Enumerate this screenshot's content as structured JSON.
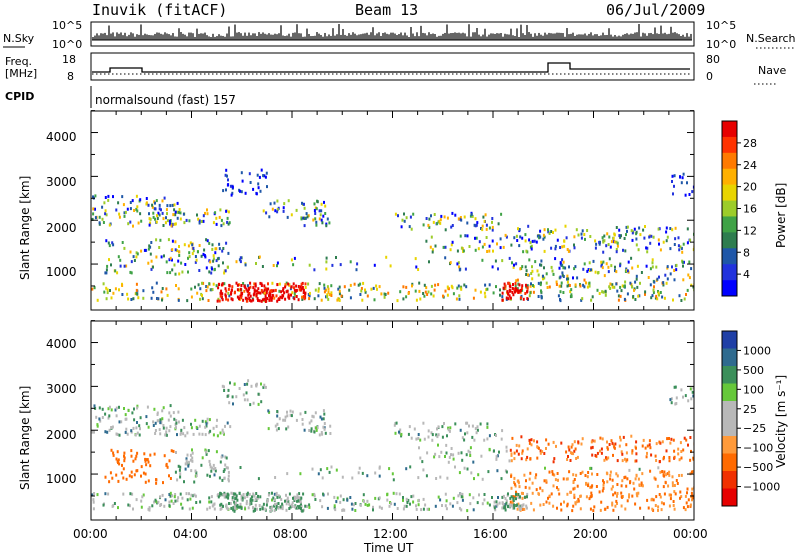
{
  "header": {
    "station": "Inuvik (fitACF)",
    "beam": "Beam 13",
    "date": "06/Jul/2009"
  },
  "strip": {
    "nsky_label": "N.Sky",
    "nsky_ticks": [
      "10^5",
      "10^0"
    ],
    "nsearch_label": "N.Search",
    "nsearch_ticks": [
      "10^5",
      "10^0"
    ],
    "freq_label": "Freq.",
    "freq_unit": "[MHz]",
    "freq_ticks": [
      "18",
      "8"
    ],
    "nave_label": "Nave",
    "nave_ticks": [
      "80",
      "0"
    ],
    "cpid_label": "CPID",
    "cpid_text": "normalsound (fast) 157"
  },
  "xaxis": {
    "label": "Time UT",
    "ticks": [
      "00:00",
      "04:00",
      "08:00",
      "12:00",
      "16:00",
      "20:00",
      "00:00"
    ]
  },
  "chart_data": [
    {
      "type": "heatmap",
      "ylabel": "Slant Range [km]",
      "yticks": [
        "4000",
        "3000",
        "2000",
        "1000"
      ],
      "colorbar": {
        "label": "Power [dB]",
        "ticks": [
          "28",
          "24",
          "20",
          "16",
          "12",
          "8",
          "4"
        ],
        "colors": [
          "#e60000",
          "#ff3300",
          "#ff7a00",
          "#ffb000",
          "#e8d400",
          "#9ccc2a",
          "#3fa246",
          "#2e7d4f",
          "#1f57a8",
          "#2233dd",
          "#0000ff"
        ]
      }
    },
    {
      "type": "heatmap",
      "ylabel": "Slant Range [km]",
      "yticks": [
        "4000",
        "3000",
        "2000",
        "1000"
      ],
      "colorbar": {
        "label": "Velocity [m s⁻¹]",
        "ticks": [
          "1000",
          "500",
          "100",
          "25",
          "−25",
          "−100",
          "−500",
          "−1000"
        ],
        "colors": [
          "#1f3fa6",
          "#2f6b8f",
          "#3b8f5a",
          "#66c83a",
          "#b8b8b8",
          "#b8b8b8",
          "#ff9a3a",
          "#ff6a00",
          "#f03000",
          "#e60000"
        ]
      }
    }
  ]
}
